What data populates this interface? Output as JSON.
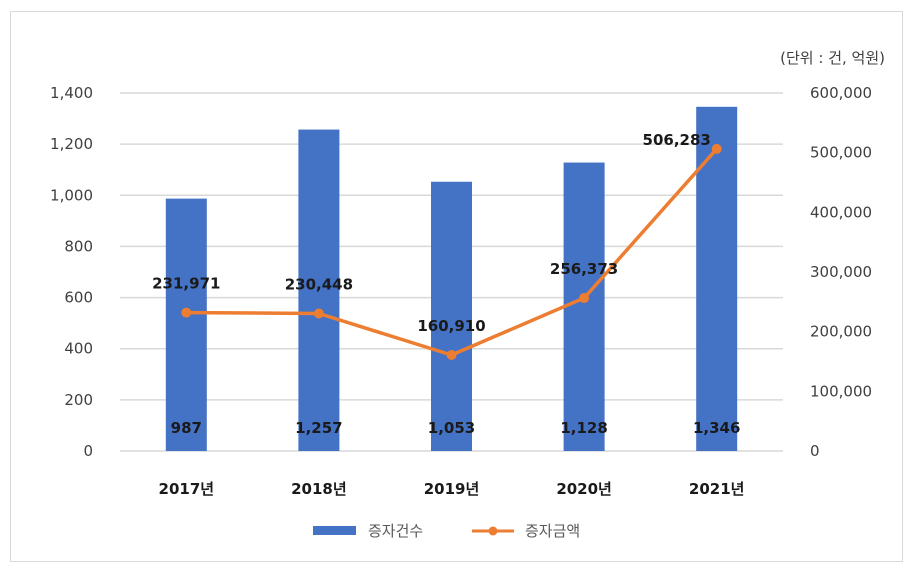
{
  "chart_data": {
    "type": "bar+line",
    "title": "",
    "unit_note": "(단위 : 건, 억원)",
    "categories": [
      "2017년",
      "2018년",
      "2019년",
      "2020년",
      "2021년"
    ],
    "series": [
      {
        "name": "증자건수",
        "type": "bar",
        "axis": "left",
        "color": "#4472C4",
        "values": [
          987,
          1257,
          1053,
          1128,
          1346
        ],
        "labels": [
          "987",
          "1,257",
          "1,053",
          "1,128",
          "1,346"
        ]
      },
      {
        "name": "증자금액",
        "type": "line",
        "axis": "right",
        "color": "#ED7D31",
        "values": [
          231971,
          230448,
          160910,
          256373,
          506283
        ],
        "labels": [
          "231,971",
          "230,448",
          "160,910",
          "256,373",
          "506,283"
        ]
      }
    ],
    "left_axis": {
      "min": 0,
      "max": 1400,
      "step": 200,
      "ticks": [
        "0",
        "200",
        "400",
        "600",
        "800",
        "1,000",
        "1,200",
        "1,400"
      ]
    },
    "right_axis": {
      "min": 0,
      "max": 600000,
      "step": 100000,
      "ticks": [
        "0",
        "100,000",
        "200,000",
        "300,000",
        "400,000",
        "500,000",
        "600,000"
      ]
    },
    "xlabel": "",
    "ylabel": "",
    "grid": true,
    "legend_position": "bottom"
  },
  "legend": {
    "items": [
      {
        "label": "증자건수",
        "icon": "bar-swatch-icon"
      },
      {
        "label": "증자금액",
        "icon": "line-marker-icon"
      }
    ]
  }
}
